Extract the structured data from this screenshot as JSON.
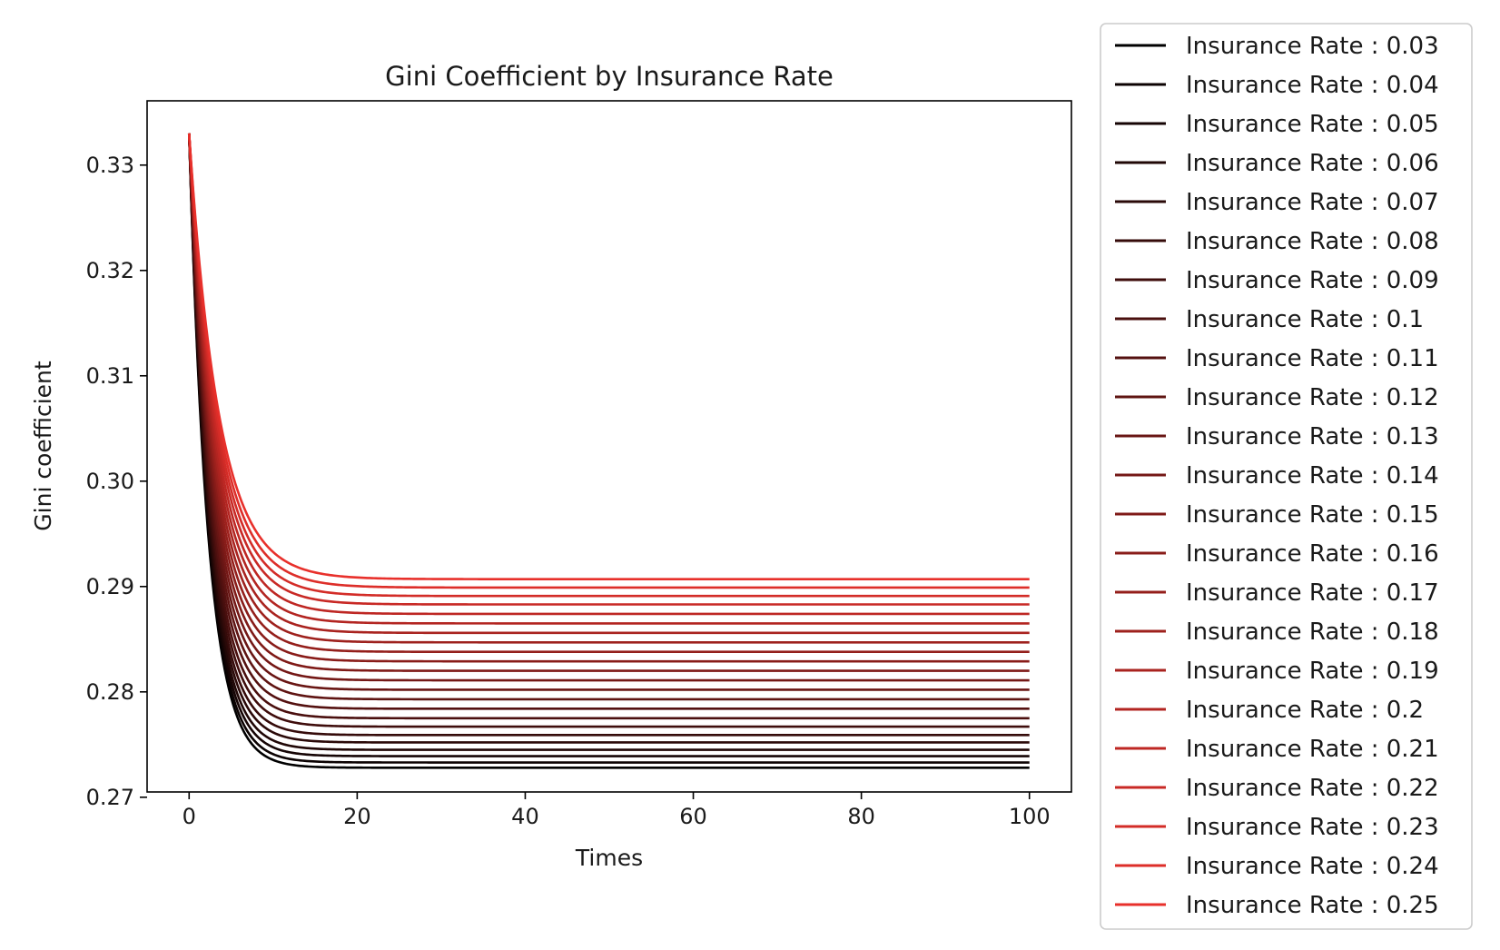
{
  "chart_data": {
    "type": "line",
    "title": "Gini Coefficient by Insurance Rate",
    "xlabel": "Times",
    "ylabel": "Gini coefficient",
    "xlim": [
      -5,
      105
    ],
    "ylim": [
      0.2705,
      0.3361
    ],
    "x_ticks": [
      0,
      20,
      40,
      60,
      80,
      100
    ],
    "x_tick_labels": [
      "0",
      "20",
      "40",
      "60",
      "80",
      "100"
    ],
    "y_ticks": [
      0.27,
      0.28,
      0.29,
      0.3,
      0.31,
      0.32,
      0.33
    ],
    "y_tick_labels": [
      "0.27",
      "0.28",
      "0.29",
      "0.30",
      "0.31",
      "0.32",
      "0.33"
    ],
    "x_range": [
      0,
      100
    ],
    "start_value": 0.333,
    "grid": false,
    "legend_position": "outside-right",
    "color_start": "#000000",
    "color_end": "#e8302b",
    "series": [
      {
        "name": "Insurance Rate : 0.03",
        "final": 0.2728
      },
      {
        "name": "Insurance Rate : 0.04",
        "final": 0.2733
      },
      {
        "name": "Insurance Rate : 0.05",
        "final": 0.2739
      },
      {
        "name": "Insurance Rate : 0.06",
        "final": 0.2745
      },
      {
        "name": "Insurance Rate : 0.07",
        "final": 0.2752
      },
      {
        "name": "Insurance Rate : 0.08",
        "final": 0.2759
      },
      {
        "name": "Insurance Rate : 0.09",
        "final": 0.2767
      },
      {
        "name": "Insurance Rate : 0.1",
        "final": 0.2775
      },
      {
        "name": "Insurance Rate : 0.11",
        "final": 0.2784
      },
      {
        "name": "Insurance Rate : 0.12",
        "final": 0.2793
      },
      {
        "name": "Insurance Rate : 0.13",
        "final": 0.2802
      },
      {
        "name": "Insurance Rate : 0.14",
        "final": 0.2811
      },
      {
        "name": "Insurance Rate : 0.15",
        "final": 0.282
      },
      {
        "name": "Insurance Rate : 0.16",
        "final": 0.2829
      },
      {
        "name": "Insurance Rate : 0.17",
        "final": 0.2838
      },
      {
        "name": "Insurance Rate : 0.18",
        "final": 0.2847
      },
      {
        "name": "Insurance Rate : 0.19",
        "final": 0.2856
      },
      {
        "name": "Insurance Rate : 0.2",
        "final": 0.2865
      },
      {
        "name": "Insurance Rate : 0.21",
        "final": 0.2874
      },
      {
        "name": "Insurance Rate : 0.22",
        "final": 0.2883
      },
      {
        "name": "Insurance Rate : 0.23",
        "final": 0.2891
      },
      {
        "name": "Insurance Rate : 0.24",
        "final": 0.2899
      },
      {
        "name": "Insurance Rate : 0.25",
        "final": 0.2907
      }
    ]
  }
}
